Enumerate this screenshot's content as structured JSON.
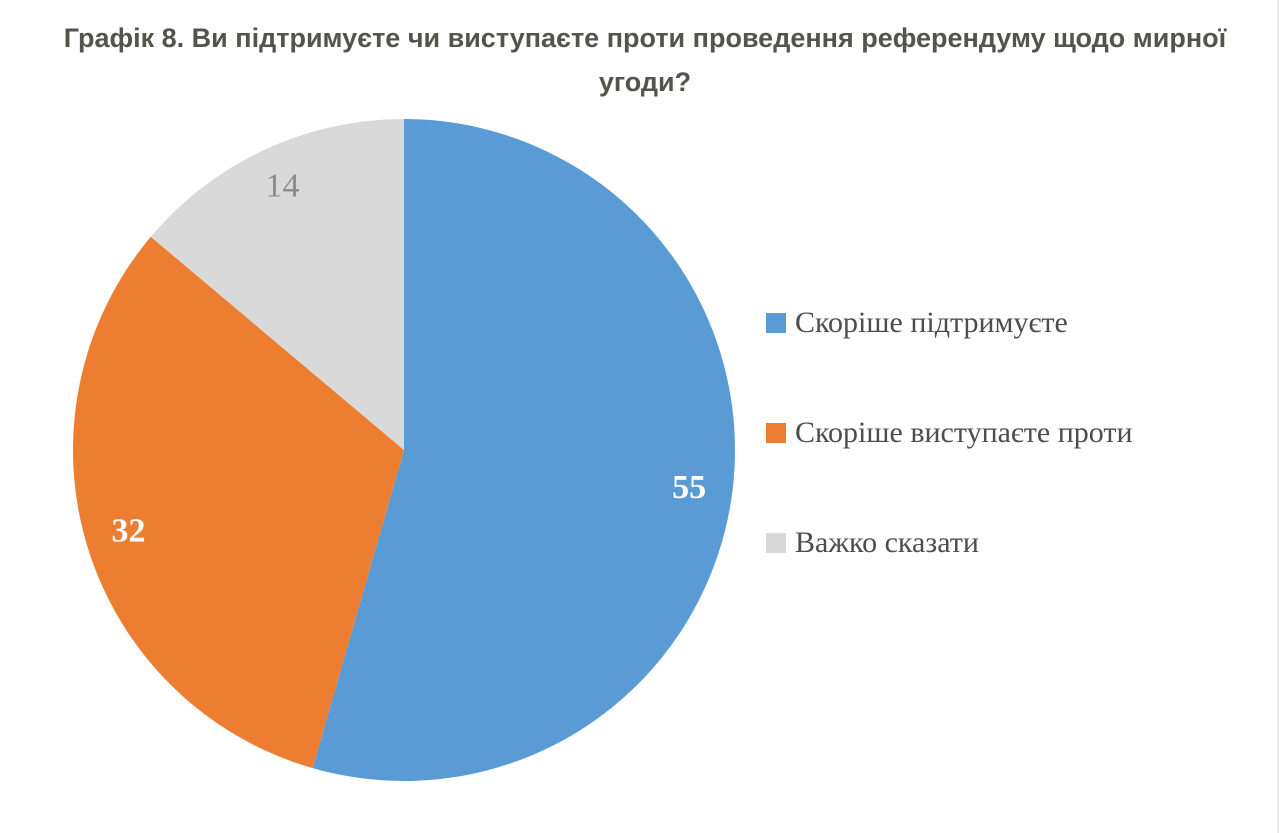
{
  "title": "Графік 8. Ви підтримуєте чи виступаєте проти проведення референдуму щодо мирної угоди?",
  "chart_data": {
    "type": "pie",
    "title": "Графік 8. Ви підтримуєте чи виступаєте проти проведення референдуму щодо мирної угоди?",
    "labels": [
      "Скоріше підтримуєте",
      "Скоріше виступаєте проти",
      "Важко сказати"
    ],
    "values": [
      55,
      32,
      14
    ],
    "colors": [
      "#5B9BD5",
      "#ED7D31",
      "#D9D9D9"
    ],
    "value_label_colors": [
      "#FFFFFF",
      "#FFFFFF",
      "#8C8C8C"
    ],
    "value_label_bold": [
      true,
      true,
      false
    ],
    "start_angle": "top",
    "direction": "clockwise",
    "legend_position": "right",
    "title_color": "#54544D",
    "legend_text_color": "#4D4D4D"
  }
}
